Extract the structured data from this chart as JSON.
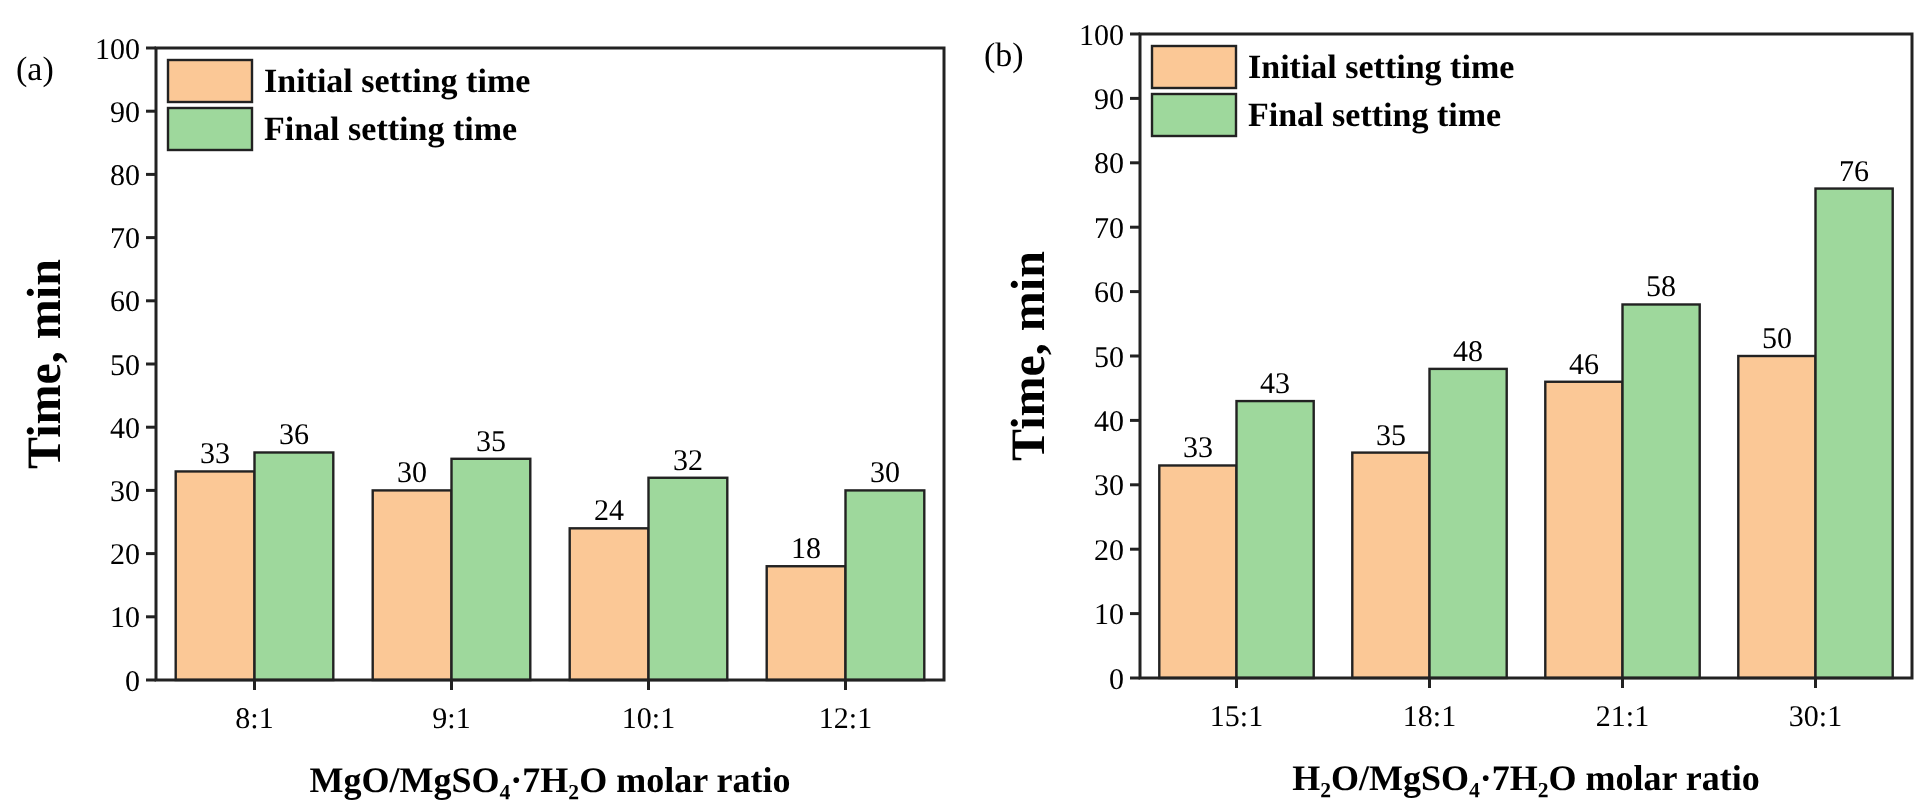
{
  "chart_data": [
    {
      "type": "bar",
      "xlabel": "MgO/MgSO₄·7H₂O molar ratio",
      "ylabel": "Time, min",
      "annotations": [
        "(a)"
      ],
      "categories": [
        "8:1",
        "9:1",
        "10:1",
        "12:1"
      ],
      "series": [
        {
          "name": "Initial setting time",
          "color": "#fbc896",
          "values": [
            33,
            30,
            24,
            18
          ]
        },
        {
          "name": "Final setting time",
          "color": "#9ed89c",
          "values": [
            36,
            35,
            32,
            30
          ]
        }
      ],
      "ylim": [
        0,
        100
      ],
      "yticks": [
        0,
        10,
        20,
        30,
        40,
        50,
        60,
        70,
        80,
        90,
        100
      ],
      "data_labels": true,
      "legend": "top left",
      "grid": false
    },
    {
      "type": "bar",
      "xlabel": "H₂O/MgSO₄·7H₂O molar ratio",
      "ylabel": "Time, min",
      "annotations": [
        "(b)"
      ],
      "categories": [
        "15:1",
        "18:1",
        "21:1",
        "30:1"
      ],
      "series": [
        {
          "name": "Initial setting time",
          "color": "#fbc896",
          "values": [
            33,
            35,
            46,
            50
          ]
        },
        {
          "name": "Final setting time",
          "color": "#9ed89c",
          "values": [
            43,
            48,
            58,
            76
          ]
        }
      ],
      "ylim": [
        0,
        100
      ],
      "yticks": [
        0,
        10,
        20,
        30,
        40,
        50,
        60,
        70,
        80,
        90,
        100
      ],
      "data_labels": true,
      "legend": "top left",
      "grid": false
    }
  ]
}
